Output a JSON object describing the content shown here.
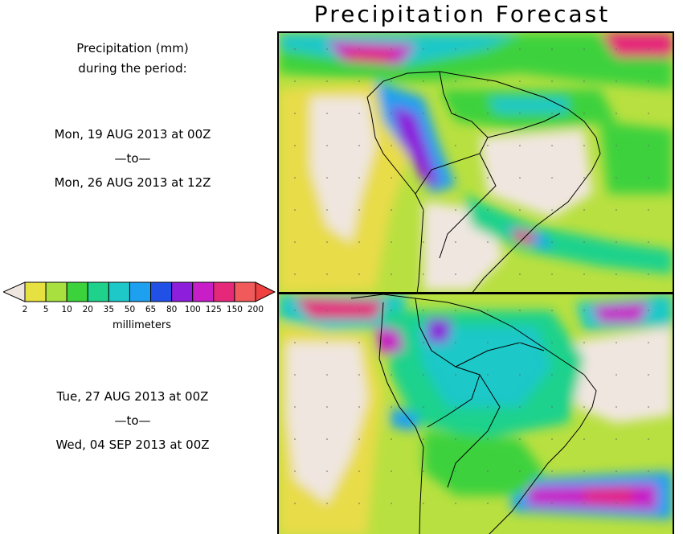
{
  "title": "Precipitation Forecast",
  "heading": {
    "line1": "Precipitation (mm)",
    "line2": "during the period:"
  },
  "periods": [
    {
      "start": "Mon, 19 AUG 2013 at 00Z",
      "separator": "—to—",
      "end": "Mon, 26 AUG 2013 at 12Z"
    },
    {
      "start": "Tue, 27 AUG 2013 at 00Z",
      "separator": "—to—",
      "end": "Wed, 04 SEP 2013 at 00Z"
    }
  ],
  "legend": {
    "units": "millimeters",
    "thresholds": [
      "2",
      "5",
      "10",
      "20",
      "35",
      "50",
      "65",
      "80",
      "100",
      "125",
      "150",
      "200"
    ],
    "colors": [
      "#f0e6e0",
      "#e6e040",
      "#a8e040",
      "#3cd23c",
      "#1ed28c",
      "#1ec8c8",
      "#1ea0f0",
      "#2050e6",
      "#8c1edc",
      "#c81ec8",
      "#e6287a",
      "#f05a5a",
      "#f04040"
    ]
  },
  "maps": [
    {
      "name": "period-1-map"
    },
    {
      "name": "period-2-map"
    }
  ]
}
